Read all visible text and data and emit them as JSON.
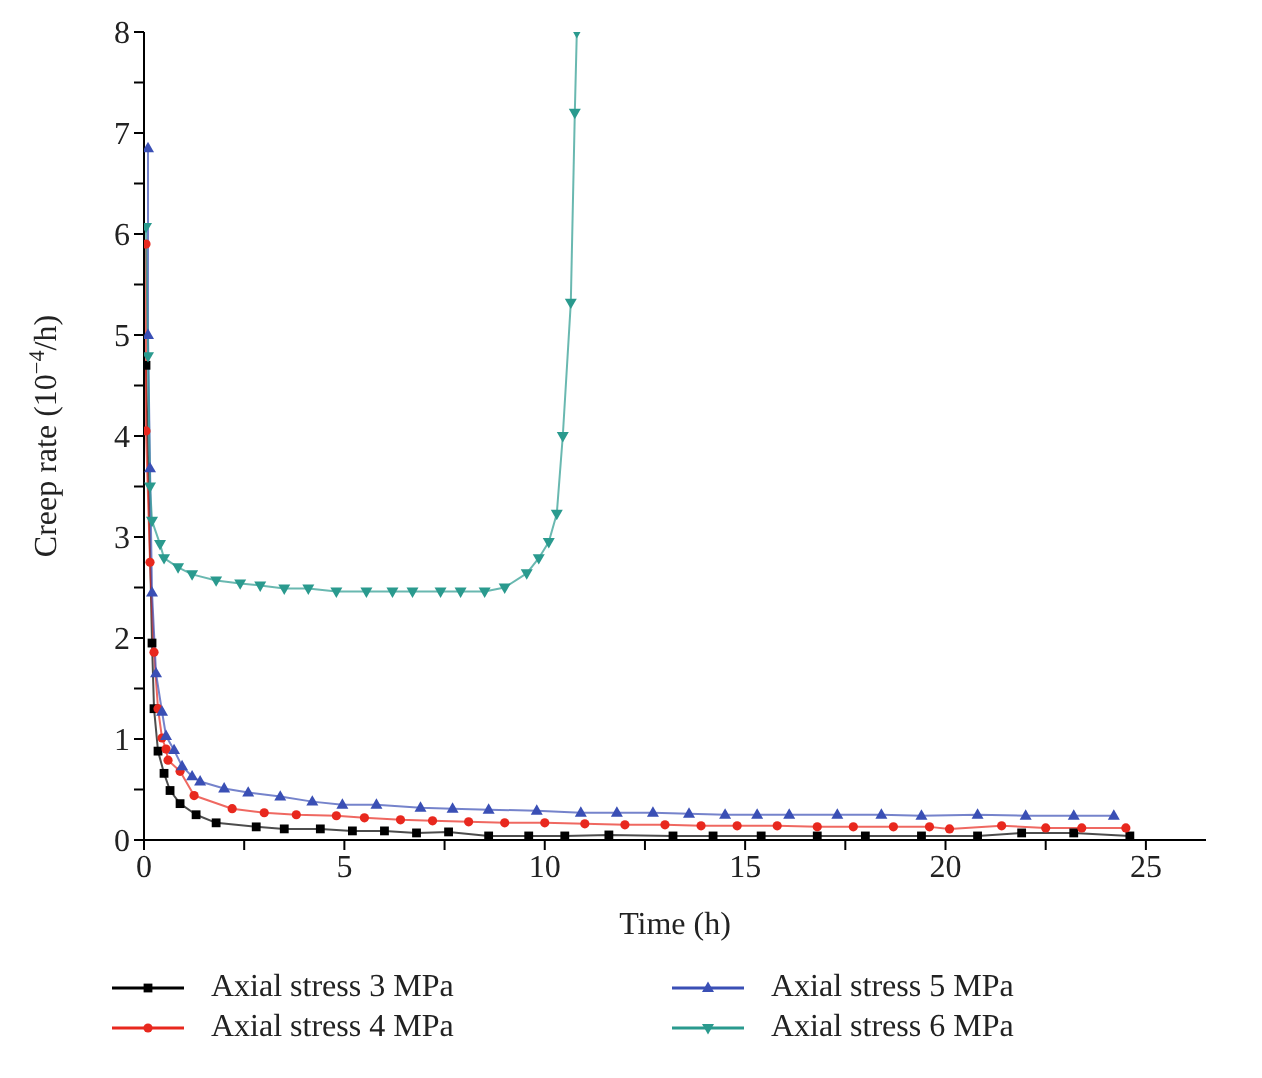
{
  "chart_data": {
    "type": "line",
    "xlabel": "Time (h)",
    "ylabel": "Creep rate (10$^{−4}$/h)",
    "xlim": [
      0,
      26.5
    ],
    "ylim": [
      0,
      8
    ],
    "xticks": [
      0,
      {
        "value": 2.5,
        "label": null
      },
      5,
      {
        "value": 7.5,
        "label": null
      },
      10,
      {
        "value": 12.5,
        "label": null
      },
      15,
      {
        "value": 17.5,
        "label": null
      },
      20,
      {
        "value": 22.5,
        "label": null
      },
      25
    ],
    "yticks": [
      0,
      {
        "value": 0.5,
        "label": null
      },
      1,
      {
        "value": 1.5,
        "label": null
      },
      2,
      {
        "value": 2.5,
        "label": null
      },
      3,
      {
        "value": 3.5,
        "label": null
      },
      4,
      {
        "value": 4.5,
        "label": null
      },
      5,
      {
        "value": 5.5,
        "label": null
      },
      6,
      {
        "value": 6.5,
        "label": null
      },
      7,
      {
        "value": 7.5,
        "label": null
      },
      8
    ],
    "legend": "bottom",
    "line_style": "solid",
    "series": [
      {
        "name": "Axial stress 3 MPa",
        "color": "#000000",
        "marker": "square",
        "x": [
          0.05,
          0.2,
          0.25,
          0.35,
          0.5,
          0.65,
          0.9,
          1.3,
          1.8,
          2.8,
          3.5,
          4.4,
          5.2,
          6.0,
          6.8,
          7.6,
          8.6,
          9.6,
          10.5,
          11.6,
          13.2,
          14.2,
          15.4,
          16.8,
          18.0,
          19.4,
          20.8,
          21.9,
          23.2,
          24.6
        ],
        "values": [
          4.7,
          1.95,
          1.3,
          0.88,
          0.66,
          0.49,
          0.36,
          0.25,
          0.17,
          0.13,
          0.11,
          0.11,
          0.09,
          0.09,
          0.07,
          0.08,
          0.04,
          0.04,
          0.04,
          0.05,
          0.04,
          0.04,
          0.04,
          0.04,
          0.04,
          0.04,
          0.04,
          0.07,
          0.07,
          0.04
        ]
      },
      {
        "name": "Axial stress 4 MPa",
        "color": "#e8281e",
        "marker": "circle",
        "x": [
          0.05,
          0.05,
          0.15,
          0.25,
          0.35,
          0.45,
          0.55,
          0.6,
          0.9,
          1.25,
          2.2,
          3.0,
          3.8,
          4.8,
          5.5,
          6.4,
          7.2,
          8.1,
          9.0,
          10.0,
          11.0,
          12.0,
          13.0,
          13.9,
          14.8,
          15.8,
          16.8,
          17.7,
          18.7,
          19.6,
          20.1,
          21.4,
          22.5,
          23.4,
          24.5
        ],
        "values": [
          5.9,
          4.05,
          2.75,
          1.86,
          1.3,
          1.01,
          0.9,
          0.79,
          0.68,
          0.44,
          0.31,
          0.27,
          0.25,
          0.24,
          0.22,
          0.2,
          0.19,
          0.18,
          0.17,
          0.17,
          0.16,
          0.15,
          0.15,
          0.14,
          0.14,
          0.14,
          0.13,
          0.13,
          0.13,
          0.13,
          0.11,
          0.14,
          0.12,
          0.12,
          0.12
        ]
      },
      {
        "name": "Axial stress 5 MPa",
        "color": "#3a4fb5",
        "marker": "triangle",
        "x": [
          0.1,
          0.1,
          0.15,
          0.2,
          0.3,
          0.45,
          0.55,
          0.75,
          0.95,
          1.2,
          1.4,
          2.0,
          2.6,
          3.4,
          4.2,
          4.95,
          5.8,
          6.9,
          7.7,
          8.6,
          9.8,
          10.9,
          11.8,
          12.7,
          13.6,
          14.5,
          15.3,
          16.1,
          17.3,
          18.4,
          19.4,
          20.8,
          22.0,
          23.2,
          24.2
        ],
        "values": [
          6.85,
          5.0,
          3.68,
          2.45,
          1.65,
          1.27,
          1.03,
          0.89,
          0.73,
          0.63,
          0.58,
          0.51,
          0.47,
          0.43,
          0.38,
          0.35,
          0.35,
          0.32,
          0.31,
          0.3,
          0.29,
          0.27,
          0.27,
          0.27,
          0.26,
          0.25,
          0.25,
          0.25,
          0.25,
          0.25,
          0.24,
          0.25,
          0.24,
          0.24,
          0.24
        ]
      },
      {
        "name": "Axial stress 6 MPa",
        "color": "#2a9a8e",
        "marker": "triangle-down",
        "x": [
          0.05,
          0.1,
          0.15,
          0.2,
          0.4,
          0.5,
          0.85,
          1.2,
          1.8,
          2.4,
          2.9,
          3.5,
          4.1,
          4.8,
          5.55,
          6.2,
          6.7,
          7.4,
          7.9,
          8.5,
          9.0,
          9.55,
          9.85,
          10.1,
          10.3,
          10.45,
          10.65,
          10.75,
          10.8
        ],
        "values": [
          6.07,
          4.79,
          3.5,
          3.16,
          2.93,
          2.79,
          2.7,
          2.63,
          2.57,
          2.54,
          2.52,
          2.49,
          2.49,
          2.46,
          2.46,
          2.46,
          2.46,
          2.46,
          2.46,
          2.46,
          2.5,
          2.64,
          2.79,
          2.95,
          3.23,
          4.0,
          5.32,
          7.2,
          8
        ]
      }
    ]
  }
}
